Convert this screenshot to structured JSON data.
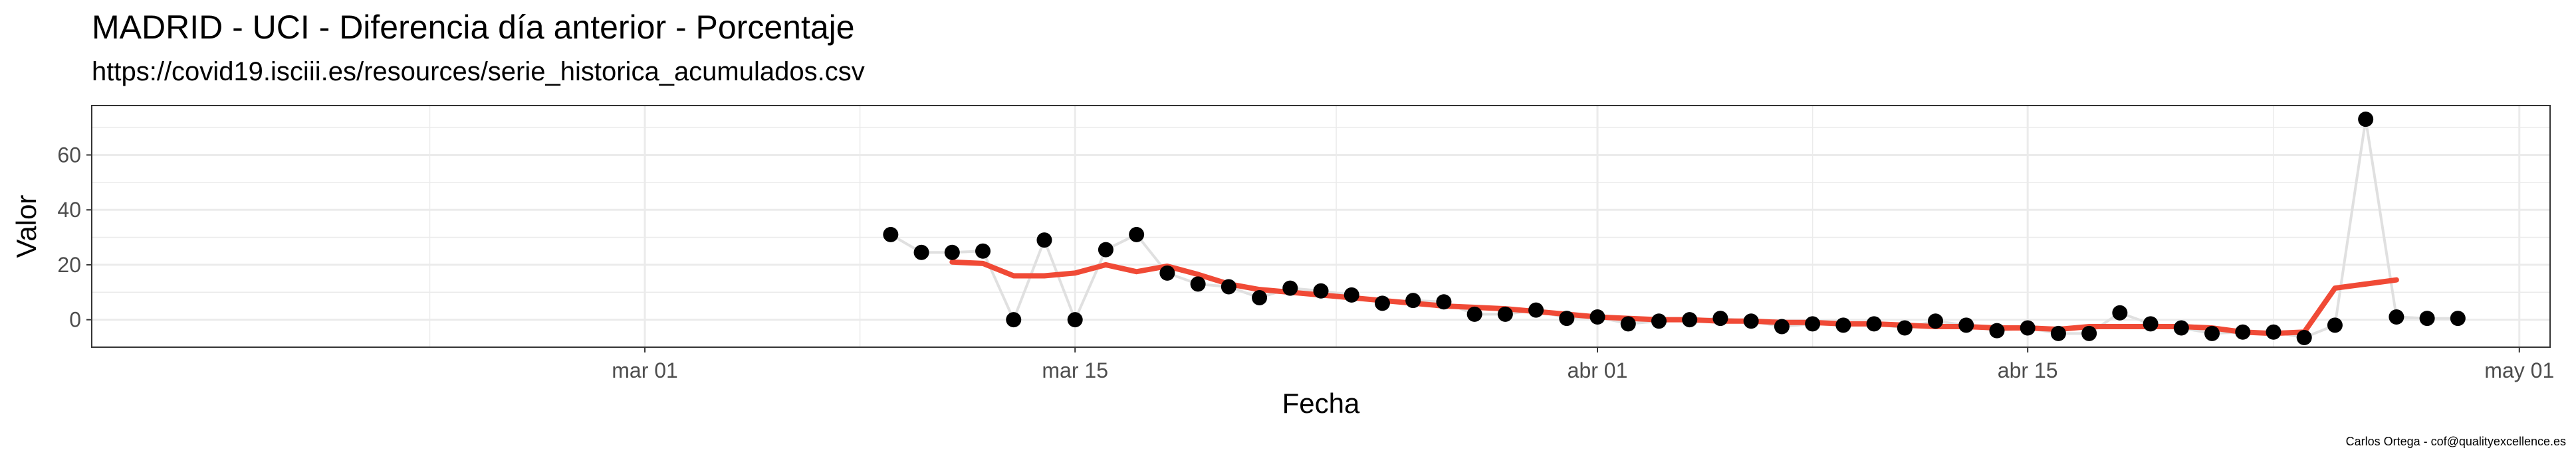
{
  "header": {
    "title": "MADRID - UCI - Diferencia día anterior - Porcentaje",
    "subtitle": "https://covid19.isciii.es/resources/serie_historica_acumulados.csv"
  },
  "caption": "Carlos Ortega - cof@qualityexcellence.es",
  "colors": {
    "points": "#000000",
    "connector": "#e0e0e0",
    "smooth": "#f04a36",
    "grid": "#ebebeb",
    "panel_border": "#333333"
  },
  "chart_data": {
    "type": "scatter",
    "title": "MADRID - UCI - Diferencia día anterior - Porcentaje",
    "subtitle": "https://covid19.isciii.es/resources/serie_historica_acumulados.csv",
    "xlabel": "Fecha",
    "ylabel": "Valor",
    "x_ticks": [
      "2020-03-01",
      "2020-03-15",
      "2020-04-01",
      "2020-04-15",
      "2020-05-01"
    ],
    "x_tick_labels": [
      "mar 01",
      "mar 15",
      "abr 01",
      "abr 15",
      "may 01"
    ],
    "y_ticks": [
      0,
      20,
      40,
      60
    ],
    "xlim": [
      "2020-02-12",
      "2020-05-02"
    ],
    "ylim": [
      -10,
      78
    ],
    "grid": true,
    "series": [
      {
        "type": "points_with_line",
        "x": [
          "2020-03-09",
          "2020-03-10",
          "2020-03-11",
          "2020-03-12",
          "2020-03-13",
          "2020-03-14",
          "2020-03-15",
          "2020-03-16",
          "2020-03-17",
          "2020-03-18",
          "2020-03-19",
          "2020-03-20",
          "2020-03-21",
          "2020-03-22",
          "2020-03-23",
          "2020-03-24",
          "2020-03-25",
          "2020-03-26",
          "2020-03-27",
          "2020-03-28",
          "2020-03-29",
          "2020-03-30",
          "2020-03-31",
          "2020-04-01",
          "2020-04-02",
          "2020-04-03",
          "2020-04-04",
          "2020-04-05",
          "2020-04-06",
          "2020-04-07",
          "2020-04-08",
          "2020-04-09",
          "2020-04-10",
          "2020-04-11",
          "2020-04-12",
          "2020-04-13",
          "2020-04-14",
          "2020-04-15",
          "2020-04-16",
          "2020-04-17",
          "2020-04-18",
          "2020-04-19",
          "2020-04-20",
          "2020-04-21",
          "2020-04-22",
          "2020-04-23",
          "2020-04-24",
          "2020-04-25",
          "2020-04-26",
          "2020-04-27",
          "2020-04-28",
          "2020-04-29"
        ],
        "y": [
          31,
          24.5,
          24.5,
          25,
          0,
          29,
          0,
          25.5,
          31,
          17,
          13,
          12,
          8,
          11.5,
          10.5,
          9,
          6,
          7,
          6.5,
          2,
          2,
          3.5,
          0.5,
          1,
          -1.5,
          -0.5,
          0,
          0.5,
          -0.5,
          -2.5,
          -1.5,
          -2,
          -1.5,
          -3,
          -0.5,
          -2,
          -4,
          -3,
          -5,
          -5,
          2.5,
          -1.5,
          -3,
          -5,
          -4.5,
          -4.5,
          -6.5,
          -2,
          73,
          1,
          0.5,
          0.5
        ]
      },
      {
        "type": "smooth_line",
        "x": [
          "2020-03-11",
          "2020-03-12",
          "2020-03-13",
          "2020-03-14",
          "2020-03-15",
          "2020-03-16",
          "2020-03-17",
          "2020-03-18",
          "2020-03-19",
          "2020-03-20",
          "2020-03-21",
          "2020-03-22",
          "2020-03-23",
          "2020-03-24",
          "2020-03-25",
          "2020-03-26",
          "2020-03-27",
          "2020-03-28",
          "2020-03-29",
          "2020-03-30",
          "2020-03-31",
          "2020-04-01",
          "2020-04-02",
          "2020-04-03",
          "2020-04-04",
          "2020-04-05",
          "2020-04-06",
          "2020-04-07",
          "2020-04-08",
          "2020-04-09",
          "2020-04-10",
          "2020-04-11",
          "2020-04-12",
          "2020-04-13",
          "2020-04-14",
          "2020-04-15",
          "2020-04-16",
          "2020-04-17",
          "2020-04-18",
          "2020-04-19",
          "2020-04-20",
          "2020-04-21",
          "2020-04-22",
          "2020-04-23",
          "2020-04-24",
          "2020-04-25",
          "2020-04-26",
          "2020-04-27"
        ],
        "y": [
          21,
          20.5,
          16,
          16,
          17,
          20,
          17.5,
          19.5,
          16.5,
          13,
          11,
          10,
          9,
          8,
          7,
          6,
          5,
          4.5,
          4,
          3,
          2,
          1,
          0.5,
          0,
          0,
          -0.5,
          -0.5,
          -1,
          -1,
          -1.5,
          -1.5,
          -2,
          -2.5,
          -2.5,
          -3,
          -3,
          -3.5,
          -2.5,
          -2.5,
          -2.5,
          -2.5,
          -3,
          -4.5,
          -5,
          -4.5,
          11.5,
          13,
          14.5
        ]
      }
    ]
  }
}
